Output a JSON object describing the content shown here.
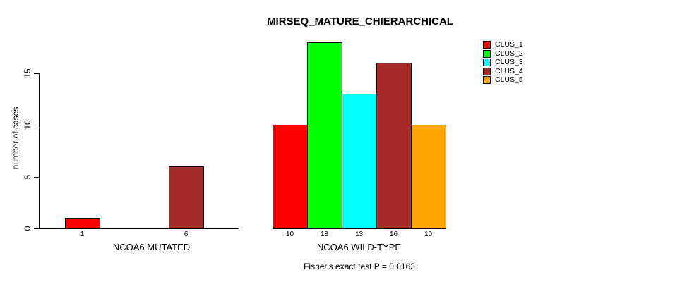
{
  "chart_data": {
    "type": "bar",
    "title": "MIRSEQ_MATURE_CHIERARCHICAL",
    "ylabel": "number of cases",
    "xlabel": "",
    "ylim": [
      0,
      18
    ],
    "yticks": [
      0,
      5,
      10,
      15
    ],
    "grid": false,
    "legend_position": "top-right",
    "categories": [
      "CLUS_1",
      "CLUS_2",
      "CLUS_3",
      "CLUS_4",
      "CLUS_5"
    ],
    "colors": [
      "#ff0000",
      "#00ff00",
      "#00ffff",
      "#a52a2a",
      "#ffa500"
    ],
    "groups": [
      {
        "label": "NCOA6 MUTATED",
        "values": [
          1,
          0,
          0,
          6,
          0
        ]
      },
      {
        "label": "NCOA6 WILD-TYPE",
        "values": [
          10,
          18,
          13,
          16,
          10
        ]
      }
    ],
    "bar_value_labels": [
      [
        "1",
        "",
        "",
        "6",
        ""
      ],
      [
        "10",
        "18",
        "13",
        "16",
        "10"
      ]
    ],
    "annotation": "Fisher's exact test P = 0.0163"
  }
}
